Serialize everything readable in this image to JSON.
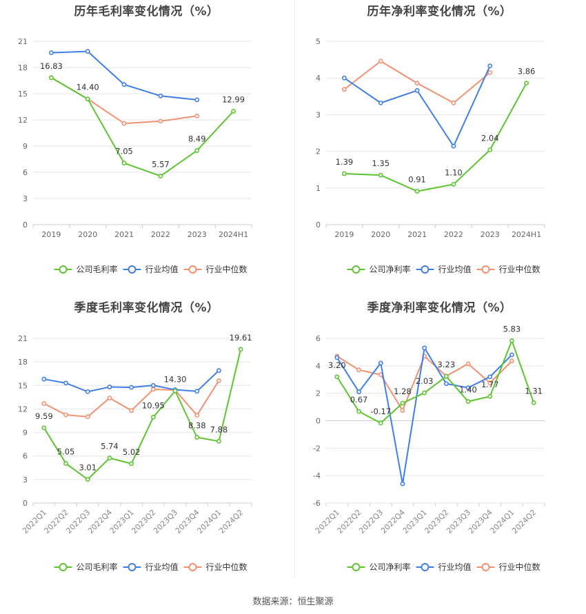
{
  "source": "数据来源：恒生聚源",
  "colors": {
    "company": "#5cc42f",
    "avg": "#3f7ee8",
    "median": "#f29170"
  },
  "chart_data": [
    {
      "id": "annual-gross",
      "type": "line",
      "title": "历年毛利率变化情况（%）",
      "categories": [
        "2019",
        "2020",
        "2021",
        "2022",
        "2023",
        "2024H1"
      ],
      "ylim": [
        0,
        21
      ],
      "yticks": [
        0,
        3,
        6,
        9,
        12,
        15,
        18,
        21
      ],
      "rotate_x": false,
      "series": [
        {
          "name": "公司毛利率",
          "key": "company",
          "values": [
            16.83,
            14.4,
            7.05,
            5.57,
            8.49,
            12.99
          ],
          "labels": [
            "16.83",
            "14.40",
            "7.05",
            "5.57",
            "8.49",
            "12.99"
          ]
        },
        {
          "name": "行业均值",
          "key": "avg",
          "values": [
            19.7,
            19.85,
            16.05,
            14.75,
            14.3,
            null
          ]
        },
        {
          "name": "行业中位数",
          "key": "median",
          "values": [
            16.85,
            14.4,
            11.6,
            11.85,
            12.45,
            null
          ]
        }
      ],
      "legend": [
        "公司毛利率",
        "行业均值",
        "行业中位数"
      ]
    },
    {
      "id": "annual-net",
      "type": "line",
      "title": "历年净利率变化情况（%）",
      "categories": [
        "2019",
        "2020",
        "2021",
        "2022",
        "2023",
        "2024H1"
      ],
      "ylim": [
        0,
        5
      ],
      "yticks": [
        0,
        1,
        2,
        3,
        4,
        5
      ],
      "rotate_x": false,
      "series": [
        {
          "name": "公司净利率",
          "key": "company",
          "values": [
            1.39,
            1.35,
            0.91,
            1.1,
            2.04,
            3.86
          ],
          "labels": [
            "1.39",
            "1.35",
            "0.91",
            "1.10",
            "2.04",
            "3.86"
          ]
        },
        {
          "name": "行业均值",
          "key": "avg",
          "values": [
            4.0,
            3.32,
            3.66,
            2.14,
            4.33,
            null
          ]
        },
        {
          "name": "行业中位数",
          "key": "median",
          "values": [
            3.69,
            4.46,
            3.86,
            3.32,
            4.15,
            null
          ]
        }
      ],
      "legend": [
        "公司净利率",
        "行业均值",
        "行业中位数"
      ]
    },
    {
      "id": "quarterly-gross",
      "type": "line",
      "title": "季度毛利率变化情况（%）",
      "categories": [
        "2022Q1",
        "2022Q2",
        "2022Q3",
        "2022Q4",
        "2023Q1",
        "2023Q2",
        "2023Q3",
        "2023Q4",
        "2024Q1",
        "2024Q2"
      ],
      "ylim": [
        0,
        21
      ],
      "yticks": [
        0,
        3,
        6,
        9,
        12,
        15,
        18,
        21
      ],
      "rotate_x": true,
      "series": [
        {
          "name": "公司毛利率",
          "key": "company",
          "values": [
            9.59,
            5.05,
            3.01,
            5.74,
            5.02,
            10.95,
            14.3,
            8.38,
            7.88,
            19.61
          ],
          "labels": [
            "9.59",
            "5.05",
            "3.01",
            "5.74",
            "5.02",
            "10.95",
            "14.30",
            "8.38",
            "7.88",
            "19.61"
          ]
        },
        {
          "name": "行业均值",
          "key": "avg",
          "values": [
            15.8,
            15.3,
            14.2,
            14.8,
            14.75,
            15.0,
            14.45,
            14.25,
            16.9,
            null
          ]
        },
        {
          "name": "行业中位数",
          "key": "median",
          "values": [
            12.7,
            11.25,
            11.0,
            13.4,
            11.8,
            14.5,
            14.4,
            11.2,
            15.6,
            null
          ]
        }
      ],
      "legend": [
        "公司毛利率",
        "行业均值",
        "行业中位数"
      ]
    },
    {
      "id": "quarterly-net",
      "type": "line",
      "title": "季度净利率变化情况（%）",
      "categories": [
        "2022Q1",
        "2022Q2",
        "2022Q3",
        "2022Q4",
        "2023Q1",
        "2023Q2",
        "2023Q3",
        "2023Q4",
        "2024Q1",
        "2024Q2"
      ],
      "ylim": [
        -6,
        6
      ],
      "yticks": [
        -6,
        -4,
        -2,
        0,
        2,
        4,
        6
      ],
      "rotate_x": true,
      "series": [
        {
          "name": "公司净利率",
          "key": "company",
          "values": [
            3.2,
            0.67,
            -0.17,
            1.28,
            2.03,
            3.23,
            1.4,
            1.77,
            5.83,
            1.31
          ],
          "labels": [
            "3.20",
            "0.67",
            "-0.17",
            "1.28",
            "2.03",
            "3.23",
            "1.40",
            "1.77",
            "5.83",
            "1.31"
          ]
        },
        {
          "name": "行业均值",
          "key": "avg",
          "values": [
            4.6,
            2.1,
            4.2,
            -4.6,
            5.3,
            2.7,
            2.4,
            3.2,
            4.8,
            null
          ]
        },
        {
          "name": "行业中位数",
          "key": "median",
          "values": [
            4.7,
            3.7,
            3.35,
            0.75,
            4.7,
            3.25,
            4.15,
            2.75,
            4.35,
            null
          ]
        }
      ],
      "legend": [
        "公司净利率",
        "行业均值",
        "行业中位数"
      ]
    }
  ]
}
